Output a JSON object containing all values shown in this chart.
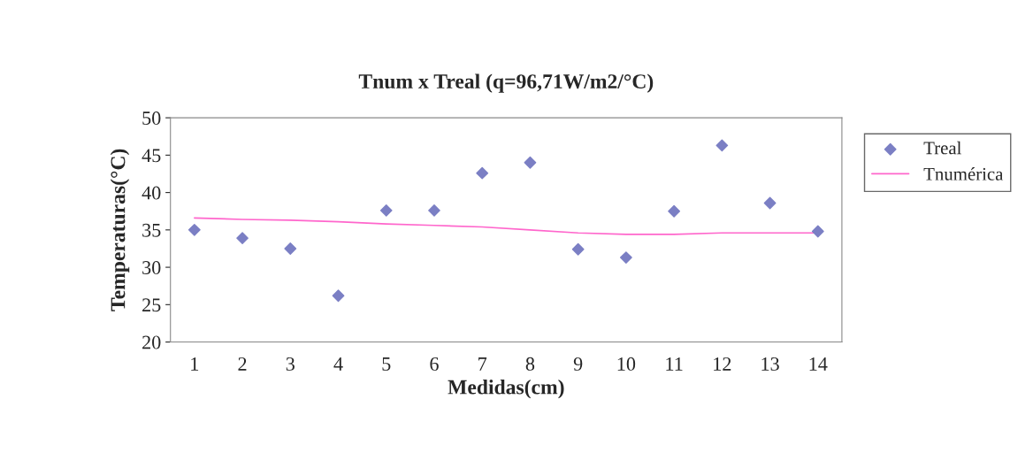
{
  "chart_data": {
    "type": "scatter",
    "title": "Tnum x Treal (q=96,71W/m2/°C)",
    "xlabel": "Medidas(cm)",
    "ylabel": "Temperaturas(°C)",
    "categories": [
      "1",
      "2",
      "3",
      "4",
      "5",
      "6",
      "7",
      "8",
      "9",
      "10",
      "11",
      "12",
      "13",
      "14"
    ],
    "series": [
      {
        "name": "Treal",
        "marker": "diamond",
        "color": "#7b7fc4",
        "values": [
          35.0,
          33.9,
          32.5,
          26.2,
          37.6,
          37.6,
          42.6,
          44.0,
          32.4,
          31.3,
          37.5,
          46.3,
          38.6,
          34.8
        ]
      },
      {
        "name": "Tnumérica",
        "type": "line",
        "marker": "none",
        "line_style": "solid",
        "color": "#ff66cc",
        "values": [
          36.6,
          36.4,
          36.3,
          36.1,
          35.8,
          35.6,
          35.4,
          35.0,
          34.6,
          34.4,
          34.4,
          34.6,
          34.6,
          34.6
        ]
      }
    ],
    "ylim": [
      20,
      50
    ],
    "yticks": [
      20,
      25,
      30,
      35,
      40,
      45,
      50
    ],
    "grid": false,
    "legend": "right"
  }
}
